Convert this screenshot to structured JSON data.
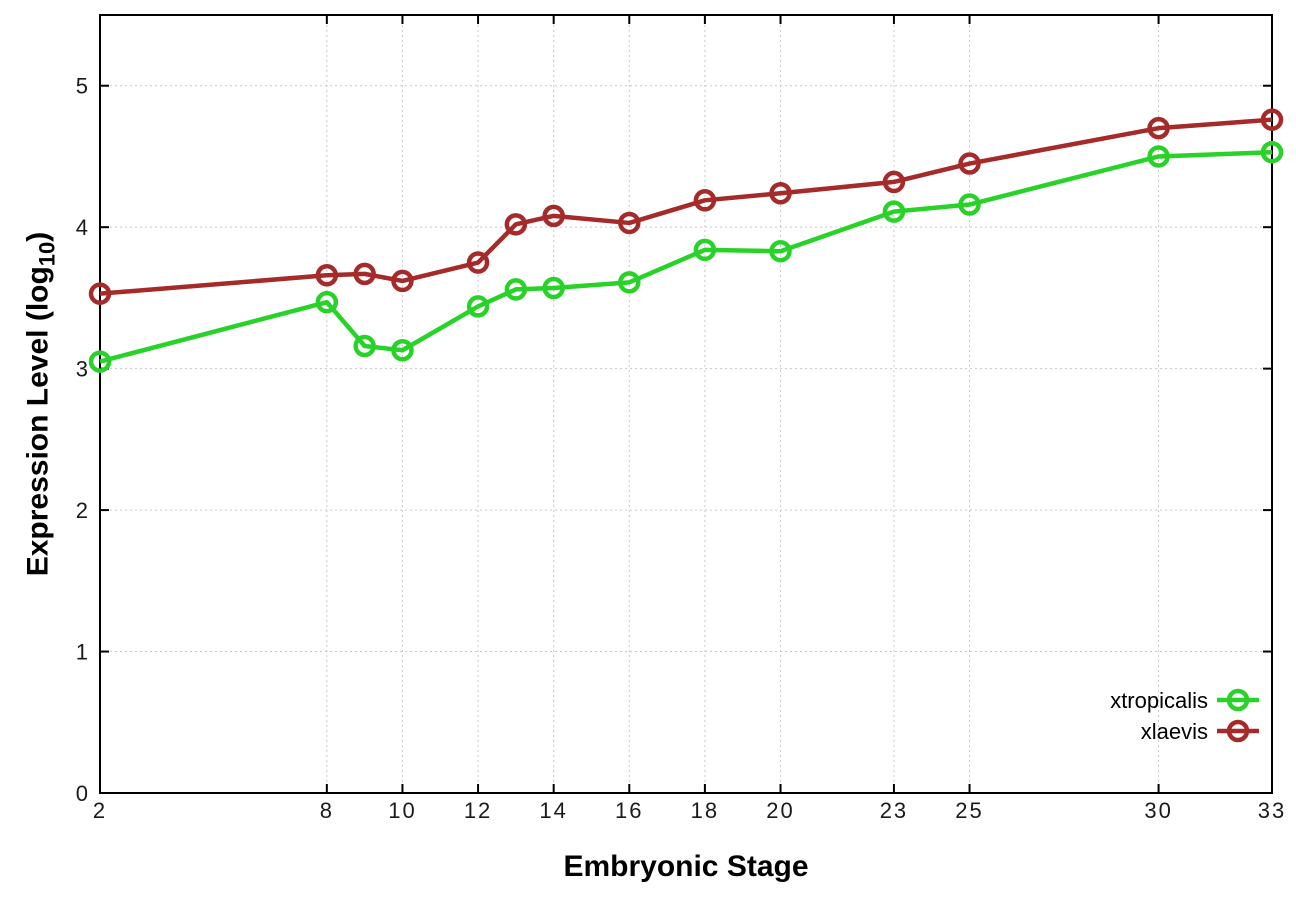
{
  "figure": {
    "xlabel": "Embryonic Stage",
    "ylabel_prefix": "Expression Level (log",
    "ylabel_sub": "10",
    "ylabel_suffix": ")"
  },
  "chart_data": {
    "type": "line",
    "title": "",
    "xlabel": "Embryonic Stage",
    "ylabel": "Expression Level (log10)",
    "x": [
      2,
      8,
      9,
      10,
      12,
      13,
      14,
      16,
      18,
      20,
      23,
      25,
      30,
      33
    ],
    "series": [
      {
        "name": "xtropicalis",
        "color": "#28d228",
        "values": [
          3.05,
          3.47,
          3.16,
          3.13,
          3.44,
          3.56,
          3.57,
          3.61,
          3.84,
          3.83,
          4.11,
          4.16,
          4.5,
          4.53
        ]
      },
      {
        "name": "xlaevis",
        "color": "#a52a2a",
        "values": [
          3.53,
          3.66,
          3.67,
          3.62,
          3.75,
          4.02,
          4.08,
          4.03,
          4.19,
          4.24,
          4.32,
          4.45,
          4.7,
          4.76
        ]
      }
    ],
    "xticks": [
      2,
      8,
      10,
      12,
      14,
      16,
      18,
      20,
      23,
      25,
      30,
      33
    ],
    "yticks": [
      0,
      1,
      2,
      3,
      4,
      5
    ],
    "xlim": [
      2,
      33
    ],
    "ylim": [
      0,
      5.5
    ],
    "grid": true,
    "grid_style": "dotted",
    "legend_position": "inside-right",
    "marker": "open-circle"
  }
}
